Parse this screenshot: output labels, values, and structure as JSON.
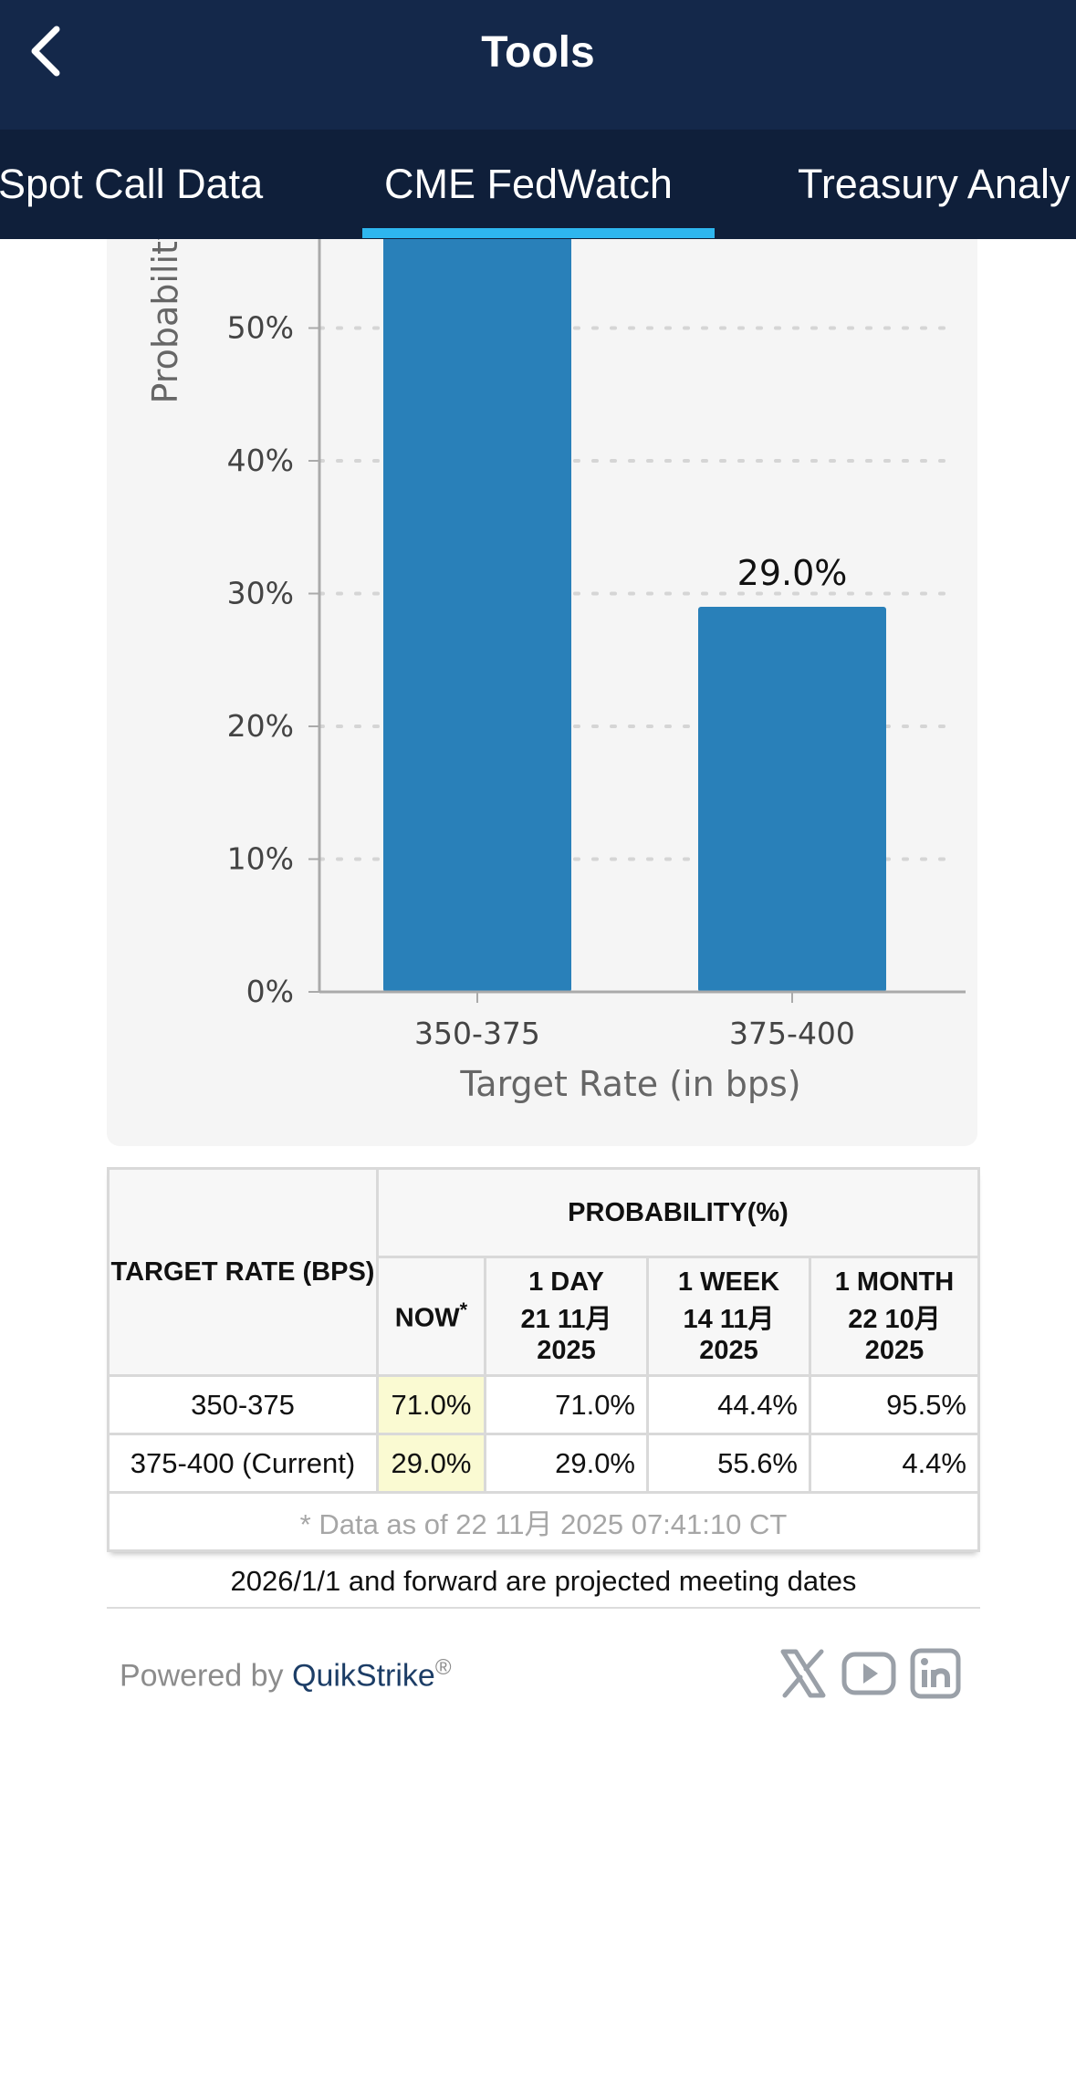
{
  "header": {
    "title": "Tools"
  },
  "tabs": [
    {
      "label": "Spot Call Data"
    },
    {
      "label": "CME FedWatch"
    },
    {
      "label": "Treasury Analy"
    }
  ],
  "chart_data": {
    "type": "bar",
    "categories": [
      "350-375",
      "375-400"
    ],
    "values": [
      71.0,
      29.0
    ],
    "data_labels": [
      "",
      "29.0%"
    ],
    "xlabel": "Target Rate (in bps)",
    "ylabel": "Probability",
    "yticks": [
      "0%",
      "10%",
      "20%",
      "30%",
      "40%",
      "50%"
    ],
    "ylim": [
      0,
      80
    ],
    "grid": true,
    "bar_color": "#2980b9"
  },
  "table": {
    "header_rate": "TARGET RATE (BPS)",
    "header_prob": "PROBABILITY(%)",
    "col_now": "NOW",
    "col_now_mark": "*",
    "columns": [
      {
        "line1": "1 DAY",
        "line2": "21 11月",
        "line3": "2025"
      },
      {
        "line1": "1 WEEK",
        "line2": "14 11月",
        "line3": "2025"
      },
      {
        "line1": "1 MONTH",
        "line2": "22 10月",
        "line3": "2025"
      }
    ],
    "rows": [
      {
        "rate": "350-375",
        "now": "71.0%",
        "day": "71.0%",
        "week": "44.4%",
        "month": "95.5%"
      },
      {
        "rate": "375-400 (Current)",
        "now": "29.0%",
        "day": "29.0%",
        "week": "55.6%",
        "month": "4.4%"
      }
    ],
    "note": "* Data as of 22 11月 2025 07:41:10 CT"
  },
  "projected_note": "2026/1/1 and forward are projected meeting dates",
  "footer": {
    "powered_by": "Powered by",
    "brand": "QuikStrike",
    "registered": "®",
    "social": [
      "x-icon",
      "youtube-icon",
      "linkedin-icon"
    ]
  }
}
